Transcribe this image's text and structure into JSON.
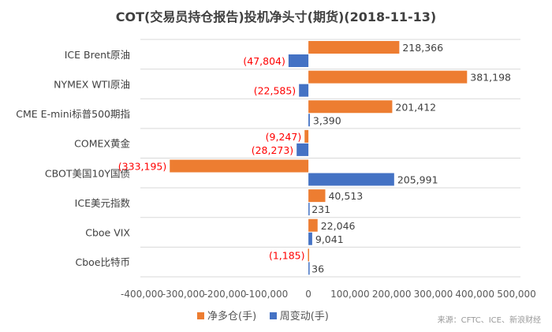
{
  "chart_data": {
    "type": "bar",
    "orientation": "horizontal",
    "title": "COT(交易员持仓报告)投机净头寸(期货)(2018-11-13)",
    "categories": [
      "ICE Brent原油",
      "NYMEX WTI原油",
      "CME E-mini标普500期指",
      "COMEX黄金",
      "CBOT美国10Y国债",
      "ICE美元指数",
      "Cboe VIX",
      "Cboe比特币"
    ],
    "series": [
      {
        "name": "净多仓(手)",
        "color": "#ED7D31",
        "values": [
          218366,
          381198,
          201412,
          -9247,
          -333195,
          40513,
          22046,
          -1185
        ],
        "labels": [
          "218,366",
          "381,198",
          "201,412",
          "(9,247)",
          "(333,195)",
          "40,513",
          "22,046",
          "(1,185)"
        ]
      },
      {
        "name": "周变动(手)",
        "color": "#4472C4",
        "values": [
          -47804,
          -22585,
          3390,
          -28273,
          205991,
          231,
          9041,
          36
        ],
        "labels": [
          "(47,804)",
          "(22,585)",
          "3,390",
          "(28,273)",
          "205,991",
          "231",
          "9,041",
          "36"
        ]
      }
    ],
    "xlim": [
      -400000,
      500000
    ],
    "xticks": [
      "-400,000",
      "-300,000",
      "-200,000",
      "-100,000",
      "0",
      "100,000",
      "200,000",
      "300,000",
      "400,000",
      "500,000"
    ],
    "legend": "bottom",
    "negative_label_color": "#FF0000",
    "source": "来源：CFTC、ICE、新浪财经"
  }
}
